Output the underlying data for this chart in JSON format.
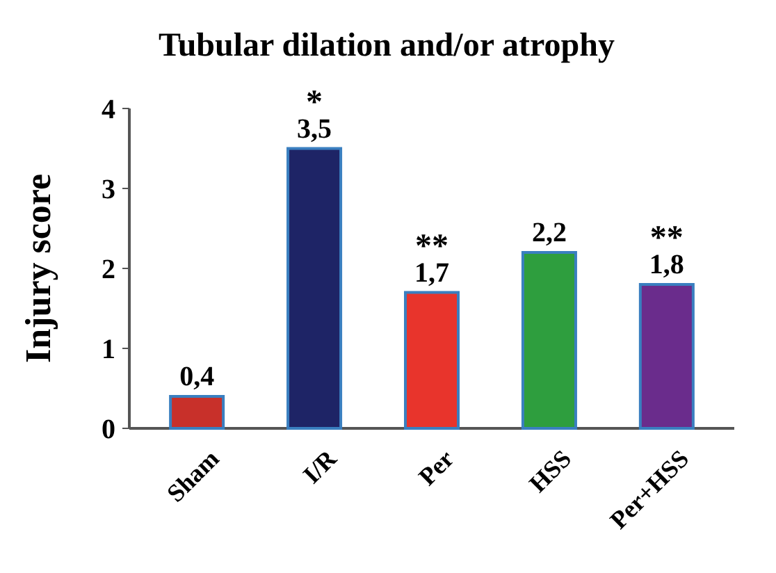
{
  "chart_data": {
    "type": "bar",
    "title": "Tubular dilation and/or atrophy",
    "ylabel": "Injury score",
    "categories": [
      "Sham",
      "I/R",
      "Per",
      "HSS",
      "Per+HSS"
    ],
    "values": [
      0.4,
      3.5,
      1.7,
      2.2,
      1.8
    ],
    "value_labels": [
      "0,4",
      "3,5",
      "1,7",
      "2,2",
      "1,8"
    ],
    "colors": [
      "#c8302a",
      "#1e2466",
      "#e8342c",
      "#2e9e3e",
      "#6a2c8c"
    ],
    "ylim": [
      0,
      4
    ],
    "yticks": [
      0,
      1,
      2,
      3,
      4
    ],
    "grid": false,
    "annotations": [
      {
        "text": "*",
        "x": "I/R",
        "y": 3.5
      },
      {
        "text": "**",
        "x": "Per",
        "y": 1.7
      },
      {
        "text": "**",
        "x": "Per+HSS",
        "y": 1.8
      }
    ]
  }
}
